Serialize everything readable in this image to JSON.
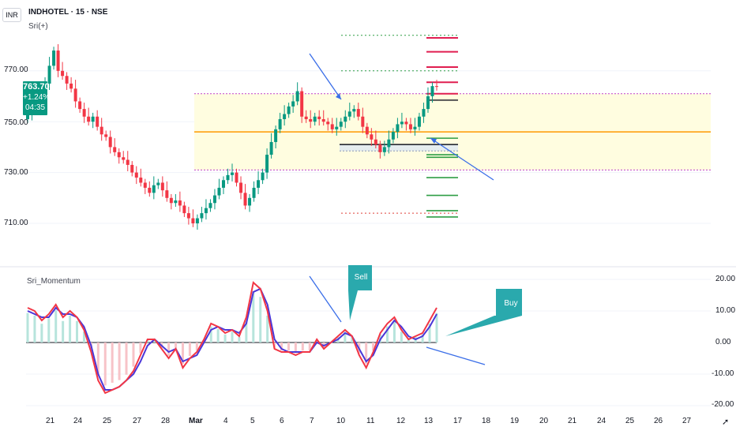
{
  "header": {
    "currency": "INR",
    "title": "INDHOTEL · 15 · NSE",
    "indicator": "Sri(+)"
  },
  "price_badge": {
    "price": "763.70",
    "change": "+1.24%",
    "countdown": "04:35"
  },
  "oscillator": {
    "name": "Sri_Momentum",
    "annotations": {
      "sell": "Sell",
      "buy": "Buy"
    }
  },
  "price_axis": {
    "ticks": [
      "770.00",
      "750.00",
      "730.00",
      "710.00"
    ]
  },
  "osc_axis": {
    "ticks": [
      "20.00",
      "10.00",
      "0.00",
      "-10.00",
      "-20.00"
    ]
  },
  "time_axis": {
    "ticks": [
      "21",
      "24",
      "25",
      "27",
      "28",
      "Mar",
      "4",
      "5",
      "6",
      "7",
      "10",
      "11",
      "12",
      "13",
      "17",
      "18",
      "19",
      "20",
      "21",
      "24",
      "25",
      "26",
      "27"
    ]
  },
  "colors": {
    "up": "#089981",
    "down": "#f23645",
    "arrow": "#3a6ee8",
    "zone": "#fffde0",
    "pivot": "#ff9800",
    "momentum": "#f23645",
    "signal": "#4a36d8",
    "callout": "#2aa9ad"
  },
  "chart_data": [
    {
      "type": "candlestick",
      "title": "INDHOTEL · 15 · NSE",
      "y_ticks": [
        770,
        750,
        730,
        710
      ],
      "last_price": 763.7,
      "close": [
        753,
        758,
        762,
        760,
        765,
        772,
        778,
        770,
        768,
        765,
        763,
        758,
        755,
        752,
        750,
        752,
        748,
        745,
        744,
        740,
        738,
        736,
        735,
        733,
        730,
        728,
        726,
        724,
        722,
        725,
        726,
        723,
        720,
        718,
        719,
        717,
        714,
        712,
        710,
        712,
        714,
        716,
        718,
        721,
        724,
        727,
        729,
        730,
        726,
        722,
        717,
        720,
        724,
        727,
        730,
        737,
        742,
        747,
        751,
        753,
        756,
        758,
        762,
        752,
        751,
        750,
        752,
        751,
        750,
        749,
        747,
        748,
        750,
        752,
        754,
        755,
        752,
        748,
        745,
        743,
        741,
        738,
        740,
        743,
        746,
        749,
        750,
        749,
        747,
        748,
        752,
        755,
        760,
        764,
        763.7
      ],
      "level_lines": {
        "pivot": 746,
        "zone": [
          761,
          731
        ],
        "upper_dotted": [
          784,
          770
        ],
        "lower_dotted": 714,
        "resistance": [
          758.5,
          761,
          765.5,
          771.5,
          777.5,
          783
        ],
        "support": [
          736,
          743.5,
          737,
          728,
          721,
          715,
          712.5
        ],
        "box_levels": [
          741,
          738.5
        ]
      }
    },
    {
      "type": "line",
      "title": "Sri_Momentum",
      "y_ticks": [
        20,
        10,
        0,
        -10,
        -20
      ],
      "ylim": [
        -20,
        20
      ],
      "series": [
        {
          "values": [
            11,
            10,
            7,
            9,
            12,
            8,
            10,
            8,
            4,
            -3,
            -12,
            -16,
            -15,
            -14,
            -12,
            -9,
            -4,
            1,
            1,
            -2,
            -5,
            -2,
            -8,
            -5,
            -3,
            1,
            6,
            5,
            3,
            4,
            2,
            8,
            19,
            17,
            10,
            -2,
            -3,
            -3,
            -4,
            -3,
            -3,
            1,
            -2,
            0,
            2,
            4,
            2,
            -4,
            -8,
            -3,
            3,
            6,
            8,
            4,
            1,
            2,
            3,
            7,
            11
          ]
        },
        {
          "values": [
            10,
            9,
            8,
            8,
            11,
            9,
            9,
            8,
            5,
            -1,
            -10,
            -15,
            -15,
            -14,
            -12,
            -10,
            -6,
            -1,
            1,
            -1,
            -3,
            -2,
            -6,
            -5,
            -4,
            0,
            4,
            5,
            4,
            4,
            3,
            6,
            16,
            17,
            12,
            1,
            -2,
            -3,
            -3,
            -3,
            -3,
            0,
            -1,
            0,
            1,
            3,
            2,
            -2,
            -6,
            -4,
            1,
            4,
            7,
            5,
            2,
            1,
            2,
            5,
            9
          ]
        }
      ]
    }
  ]
}
